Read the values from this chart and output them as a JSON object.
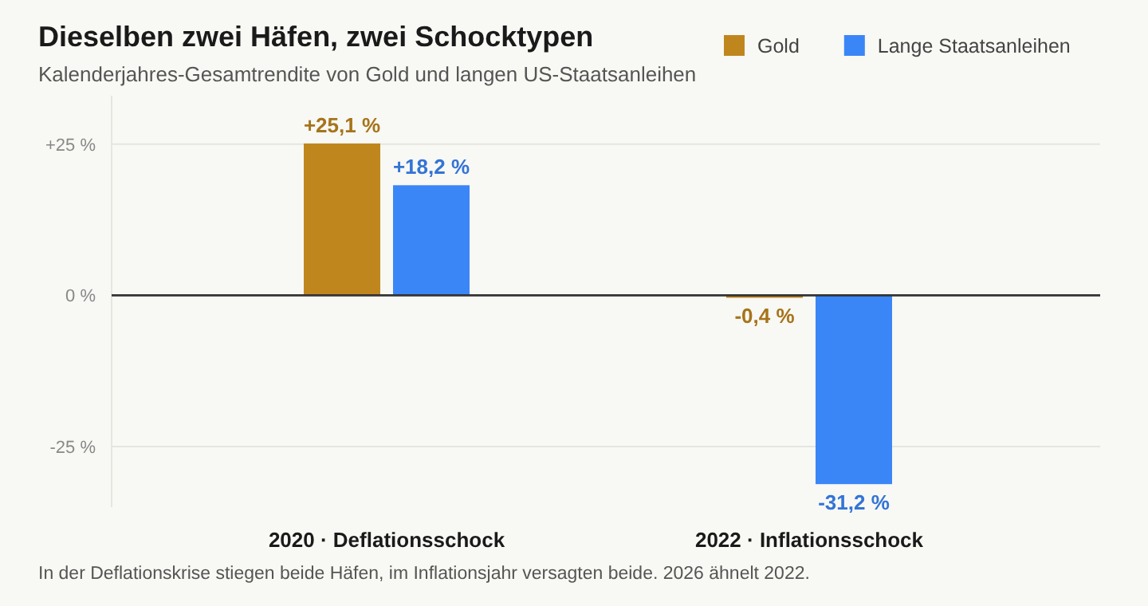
{
  "chart_data": {
    "type": "bar",
    "title": "Dieselben zwei Häfen, zwei Schocktypen",
    "subtitle": "Kalenderjahres-Gesamtrendite von Gold und langen US-Staatsanleihen",
    "categories": [
      "2020 · Deflationsschock",
      "2022 · Inflationsschock"
    ],
    "series": [
      {
        "name": "Gold",
        "color": "#c0861e",
        "values": [
          25.1,
          -0.4
        ],
        "value_labels": [
          "+25,1 %",
          "-0,4 %"
        ]
      },
      {
        "name": "Lange Staatsanleihen",
        "color": "#3b86f7",
        "values": [
          18.2,
          -31.2
        ],
        "value_labels": [
          "+18,2 %",
          "-31,2 %"
        ]
      }
    ],
    "ylim": [
      -35,
      33
    ],
    "yticks": [
      {
        "value": -25,
        "label": "-25 %"
      },
      {
        "value": 0,
        "label": "0 %"
      },
      {
        "value": 25,
        "label": "+25 %"
      }
    ],
    "grid": "y",
    "legend": "top right",
    "annotations": [
      "In der Deflationskrise stiegen beide Häfen, im Inflationsjahr versagten beide. 2026 ähnelt 2022."
    ]
  }
}
